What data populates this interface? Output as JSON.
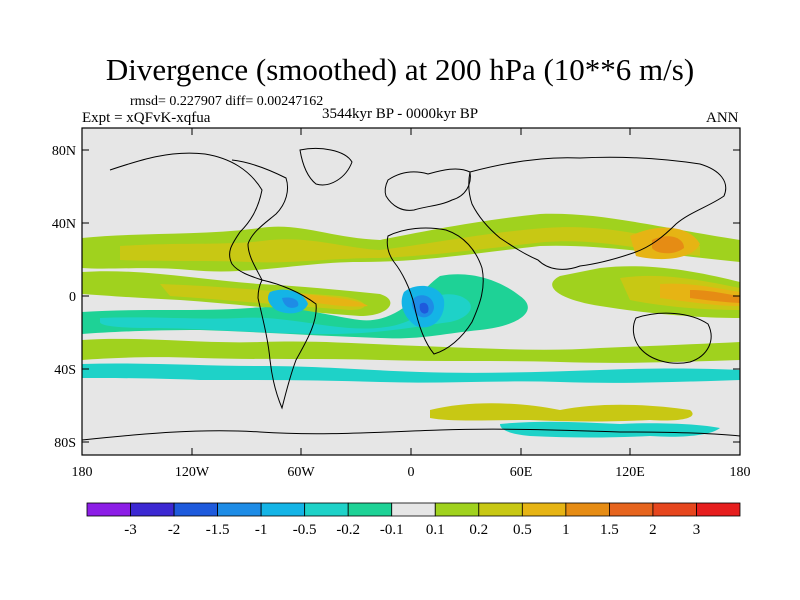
{
  "title": "Divergence (smoothed) at 200 hPa (10**6 m/s)",
  "stats": "rmsd= 0.227907 diff= 0.00247162",
  "experiment": "Expt = xQFvK-xqfua",
  "period": "3544kyr BP - 0000kyr BP",
  "season": "ANN",
  "lat_labels": [
    "80N",
    "40N",
    "0",
    "40S",
    "80S"
  ],
  "lon_labels": [
    "180",
    "120W",
    "60W",
    "0",
    "60E",
    "120E",
    "180"
  ],
  "colorbar": {
    "colors": [
      "#8c1ee6",
      "#3c28d2",
      "#1e5adc",
      "#1e8ce6",
      "#14b4e6",
      "#1ed2c8",
      "#1ed296",
      "#e6e6e6",
      "#a0d21e",
      "#c8c814",
      "#e6b414",
      "#e68c14",
      "#e6641e",
      "#e6461e",
      "#e61e1e"
    ],
    "labels": [
      "-3",
      "-2",
      "-1.5",
      "-1",
      "-0.5",
      "-0.2",
      "-0.1",
      "0.1",
      "0.2",
      "0.5",
      "1",
      "1.5",
      "2",
      "3"
    ]
  },
  "palette": {
    "background": "#e6e6e6",
    "pos_weak": "#a0d21e",
    "pos_mid": "#c8c814",
    "pos_strong": "#e6b414",
    "pos_vstrong": "#e68c14",
    "neg_weak": "#1ed296",
    "neg_mid": "#1ed2c8",
    "neg_strong": "#14b4e6",
    "neg_vstrong": "#1e8ce6",
    "neg_extreme": "#1e5adc"
  }
}
